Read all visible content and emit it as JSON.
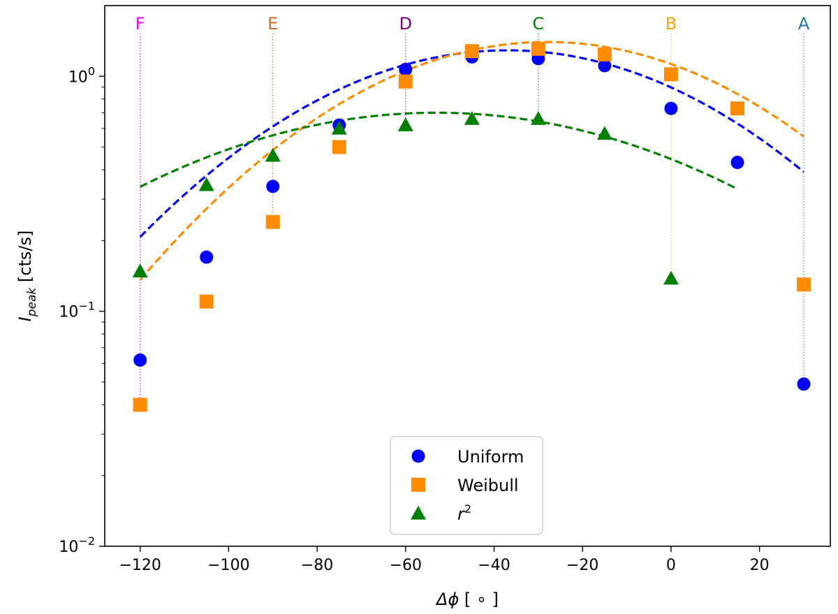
{
  "chart_data": {
    "type": "scatter",
    "title": "",
    "xlabel": "Δφ [°]",
    "ylabel": "I_peak [cts/s]",
    "ylabel_main": "I",
    "ylabel_sub": "peak",
    "ylabel_unit": " [cts/s]",
    "xlabel_main": "Δϕ",
    "xlabel_unit": " [ ∘ ]",
    "xlim": [
      -128,
      36
    ],
    "ylim": [
      0.01,
      2.0
    ],
    "yscale": "log",
    "xticks": [
      -120,
      -100,
      -80,
      -60,
      -40,
      -20,
      0,
      20
    ],
    "xtick_labels": [
      "−120",
      "−100",
      "−80",
      "−60",
      "−40",
      "−20",
      "0",
      "20"
    ],
    "yticks": [
      {
        "value": 0.01,
        "base": "10",
        "exp": "−2"
      },
      {
        "value": 0.1,
        "base": "10",
        "exp": "−1"
      },
      {
        "value": 1,
        "base": "10",
        "exp": "0"
      }
    ],
    "markers": [
      {
        "label": "F",
        "x": -120,
        "color": "#ff00ff"
      },
      {
        "label": "E",
        "x": -90,
        "color": "#d2691e"
      },
      {
        "label": "D",
        "x": -60,
        "color": "#800080"
      },
      {
        "label": "C",
        "x": -30,
        "color": "#008000"
      },
      {
        "label": "B",
        "x": 0,
        "color": "#ffa500"
      },
      {
        "label": "A",
        "x": 30,
        "color": "#1f77b4"
      }
    ],
    "series": [
      {
        "name": "Uniform",
        "marker": "circle",
        "color": "#0000ff",
        "x": [
          -120,
          -105,
          -90,
          -75,
          -60,
          -45,
          -30,
          -15,
          0,
          15,
          30
        ],
        "y": [
          0.062,
          0.17,
          0.34,
          0.62,
          1.07,
          1.21,
          1.19,
          1.11,
          0.73,
          0.43,
          0.049
        ],
        "fit": {
          "x_start": -120,
          "x_end": 30,
          "peak_x": -37,
          "peak_y": 1.29,
          "width": 43.4,
          "color": "#0000ff"
        }
      },
      {
        "name": "Weibull",
        "marker": "square",
        "color": "#ff8c00",
        "x": [
          -120,
          -105,
          -90,
          -75,
          -60,
          -45,
          -30,
          -15,
          0,
          15,
          30
        ],
        "y": [
          0.04,
          0.11,
          0.24,
          0.5,
          0.95,
          1.28,
          1.31,
          1.24,
          1.02,
          0.73,
          0.13
        ],
        "fit": {
          "x_start": -120,
          "x_end": 30,
          "peak_x": -28,
          "peak_y": 1.4,
          "width": 42.6,
          "color": "#ff8c00"
        }
      },
      {
        "name": "r^2",
        "marker": "triangle",
        "color": "#008000",
        "x": [
          -120,
          -105,
          -90,
          -75,
          -60,
          -45,
          -30,
          -15,
          0
        ],
        "y": [
          0.148,
          0.345,
          0.46,
          0.6,
          0.62,
          0.66,
          0.66,
          0.57,
          0.138
        ],
        "fit": {
          "x_start": -120,
          "x_end": 15,
          "peak_x": -53,
          "peak_y": 0.7,
          "width": 55.6,
          "color": "#008000"
        }
      }
    ],
    "legend": {
      "position": "bottom-center",
      "entries": [
        {
          "label": "Uniform",
          "marker": "circle",
          "color": "#0000ff"
        },
        {
          "label": "Weibull",
          "marker": "square",
          "color": "#ff8c00"
        },
        {
          "label_main": "r",
          "label_sup": "2",
          "marker": "triangle",
          "color": "#008000"
        }
      ]
    }
  }
}
